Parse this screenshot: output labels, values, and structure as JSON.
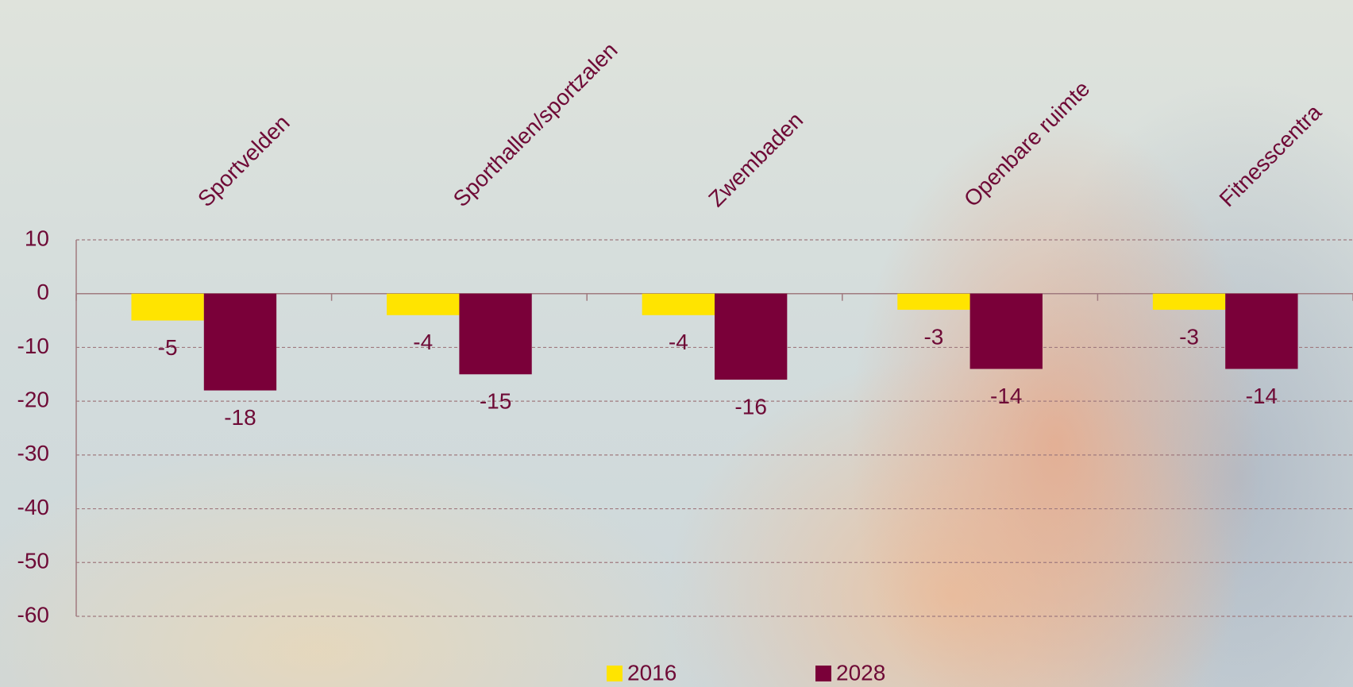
{
  "chart_data": {
    "type": "bar",
    "categories": [
      "Sportvelden",
      "Sporthallen/sportzalen",
      "Zwembaden",
      "Openbare ruimte",
      "Fitnesscentra"
    ],
    "series": [
      {
        "name": "2016",
        "color": "#ffe400",
        "values": [
          -5,
          -4,
          -4,
          -3,
          -3
        ]
      },
      {
        "name": "2028",
        "color": "#7a0039",
        "values": [
          -18,
          -15,
          -16,
          -14,
          -14
        ]
      }
    ],
    "ylim": [
      -60,
      10
    ],
    "yticks": [
      -60,
      -50,
      -40,
      -30,
      -20,
      -10,
      0,
      10
    ],
    "grid": true
  }
}
